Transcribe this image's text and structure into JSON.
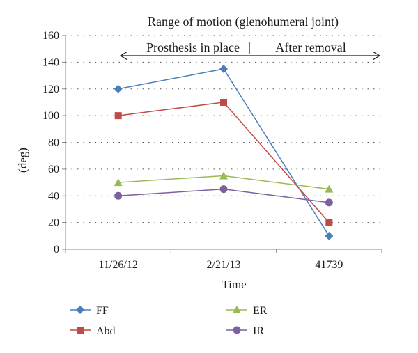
{
  "chart_data": {
    "type": "line",
    "title": "Range of motion (glenohumeral joint)",
    "xlabel": "Time",
    "ylabel": "(deg)",
    "categories": [
      "11/26/12",
      "2/21/13",
      "41739"
    ],
    "ylim": [
      0,
      160
    ],
    "yticks": [
      0,
      20,
      40,
      60,
      80,
      100,
      120,
      140,
      160
    ],
    "grid": "horizontal-dotted",
    "legend_position": "bottom",
    "annotations": {
      "left": "Prosthesis in place",
      "right": "After removal"
    },
    "series": [
      {
        "name": "FF",
        "values": [
          120,
          135,
          10
        ],
        "color": "#4a7ebb",
        "marker": "diamond"
      },
      {
        "name": "Abd",
        "values": [
          100,
          110,
          20
        ],
        "color": "#be4b48",
        "marker": "square"
      },
      {
        "name": "ER",
        "values": [
          50,
          55,
          45
        ],
        "color": "#98b954",
        "marker": "triangle"
      },
      {
        "name": "IR",
        "values": [
          40,
          45,
          35
        ],
        "color": "#7d60a0",
        "marker": "circle"
      }
    ]
  }
}
